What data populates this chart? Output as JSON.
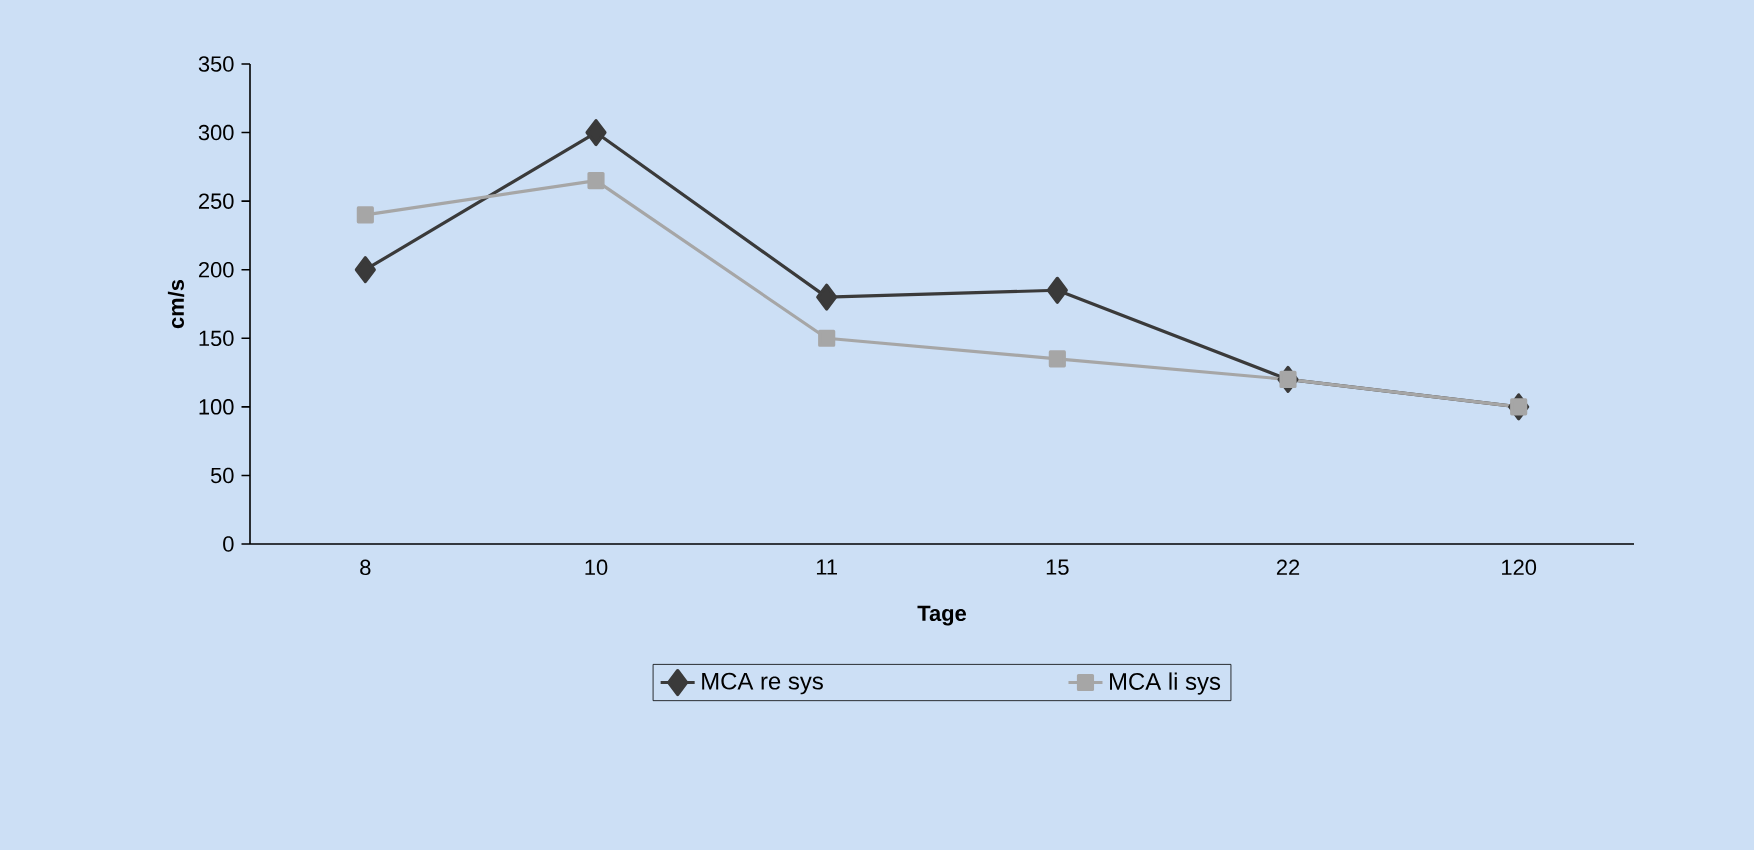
{
  "chart_data": {
    "type": "line",
    "xlabel": "Tage",
    "ylabel": "cm/s",
    "categories": [
      "8",
      "10",
      "11",
      "15",
      "22",
      "120"
    ],
    "series": [
      {
        "name": "MCA re sys",
        "color": "#3a3a3a",
        "marker": "diamond",
        "values": [
          200,
          300,
          180,
          185,
          120,
          100
        ]
      },
      {
        "name": "MCA li sys",
        "color": "#a6a6a6",
        "marker": "square",
        "values": [
          240,
          265,
          150,
          135,
          120,
          100
        ]
      }
    ],
    "ylim": [
      0,
      350
    ],
    "yticks": [
      0,
      50,
      100,
      150,
      200,
      250,
      300,
      350
    ],
    "grid": false,
    "legend": "bottom",
    "line_style": "solid"
  }
}
